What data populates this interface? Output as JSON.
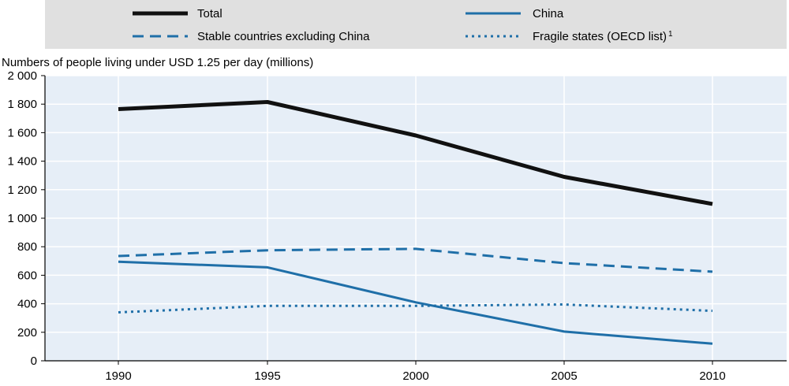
{
  "chart_data": {
    "type": "line",
    "ylabel": "Numbers of people living under USD 1.25 per day (millions)",
    "x": [
      "1990",
      "1995",
      "2000",
      "2005",
      "2010"
    ],
    "ylim": [
      0,
      2000
    ],
    "y_ticks": [
      "0",
      "200",
      "400",
      "600",
      "800",
      "1 000",
      "1 200",
      "1 400",
      "1 600",
      "1 800",
      "2 000"
    ],
    "y_tick_values": [
      0,
      200,
      400,
      600,
      800,
      1000,
      1200,
      1400,
      1600,
      1800,
      2000
    ],
    "grid": true,
    "legend_position": "top",
    "series": [
      {
        "name": "Total",
        "values": [
          1765,
          1815,
          1580,
          1290,
          1100
        ],
        "color": "#111111",
        "style": "solid-thick"
      },
      {
        "name": "China",
        "values": [
          695,
          655,
          410,
          205,
          120
        ],
        "color": "#1f6fa8",
        "style": "solid"
      },
      {
        "name": "Stable countries excluding China",
        "values": [
          735,
          775,
          785,
          685,
          625
        ],
        "color": "#1f6fa8",
        "style": "dashed"
      },
      {
        "name": "Fragile states (OECD list)",
        "name_superscript": "1",
        "values": [
          340,
          385,
          385,
          395,
          350
        ],
        "color": "#1f6fa8",
        "style": "dotted"
      }
    ]
  }
}
